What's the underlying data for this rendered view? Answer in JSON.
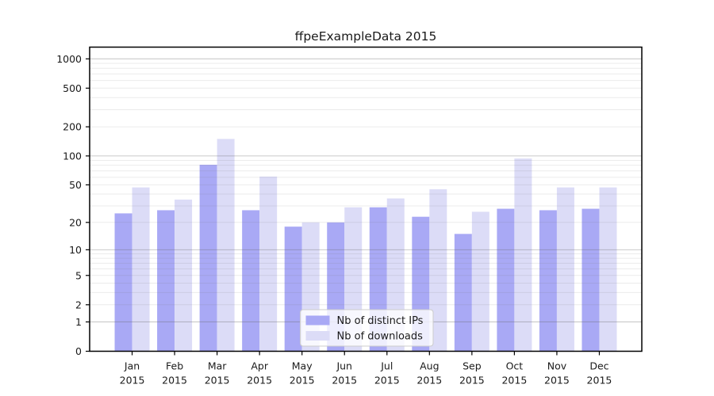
{
  "figure": {
    "title": "ffpeExampleData 2015"
  },
  "chart_data": {
    "type": "bar",
    "title": "ffpeExampleData 2015",
    "categories": [
      "Jan",
      "Feb",
      "Mar",
      "Apr",
      "May",
      "Jun",
      "Jul",
      "Aug",
      "Sep",
      "Oct",
      "Nov",
      "Dec"
    ],
    "x_tick_second_line": "2015",
    "series": [
      {
        "name": "Nb of distinct IPs",
        "color": "#a9a9f5",
        "values": [
          25,
          27,
          81,
          27,
          18,
          20,
          29,
          23,
          15,
          28,
          27,
          28
        ]
      },
      {
        "name": "Nb of downloads",
        "color": "#dcdcf7",
        "values": [
          47,
          35,
          150,
          61,
          20,
          29,
          36,
          45,
          26,
          94,
          47,
          47
        ]
      }
    ],
    "yscale": "log1p",
    "ylim": [
      0,
      1320
    ],
    "yticks": [
      0,
      1,
      2,
      5,
      10,
      20,
      50,
      100,
      200,
      500,
      1000
    ],
    "grid": true,
    "legend_position": "lower center",
    "xlabel": "",
    "ylabel": ""
  },
  "style": {
    "bar_color_ips": "#a9a9f5",
    "bar_color_downloads": "#dcdcf7",
    "grid_major_color": "rgba(100,100,100,0.35)",
    "grid_minor_color": "rgba(120,120,120,0.15)",
    "axis_color": "#000000",
    "legend_bg": "rgba(255,255,255,0.8)",
    "legend_border": "#cccccc"
  }
}
